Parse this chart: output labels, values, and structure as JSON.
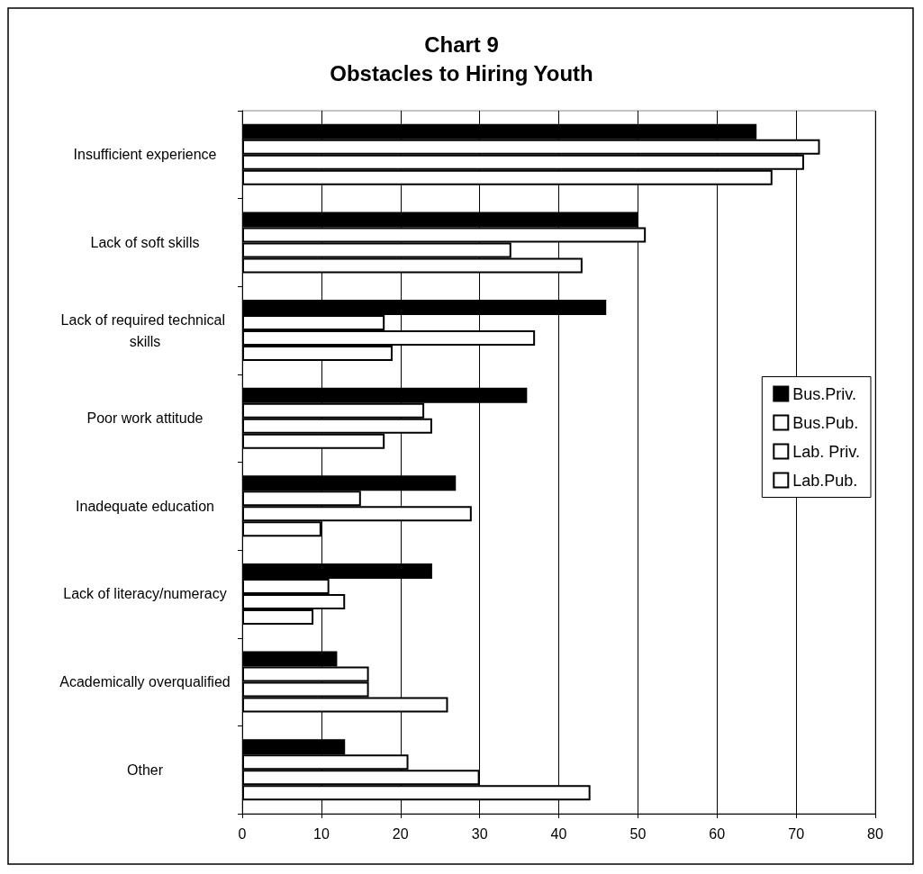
{
  "chart_data": {
    "type": "bar",
    "orientation": "horizontal",
    "title": "Chart 9\nObstacles to Hiring Youth",
    "categories": [
      "Insufficient experience",
      "Lack of soft skills",
      "Lack of required technical skills",
      "Poor work attitude",
      "Inadequate education",
      "Lack of literacy/numeracy",
      "Academically overqualified",
      "Other"
    ],
    "series": [
      {
        "name": "Bus.Priv.",
        "color": "#000000",
        "values": [
          65,
          50,
          46,
          36,
          27,
          24,
          12,
          13
        ]
      },
      {
        "name": "Bus.Pub.",
        "color": "#ffffff",
        "values": [
          73,
          51,
          18,
          23,
          15,
          11,
          16,
          21
        ]
      },
      {
        "name": "Lab. Priv.",
        "color": "#ffffff",
        "values": [
          71,
          34,
          37,
          24,
          29,
          13,
          16,
          30
        ]
      },
      {
        "name": "Lab.Pub.",
        "color": "#ffffff",
        "values": [
          67,
          43,
          19,
          18,
          10,
          9,
          26,
          44
        ]
      }
    ],
    "xlim": [
      0,
      80
    ],
    "xticks": [
      0,
      10,
      20,
      30,
      40,
      50,
      60,
      70,
      80
    ],
    "grid": "x",
    "legend": "right"
  }
}
